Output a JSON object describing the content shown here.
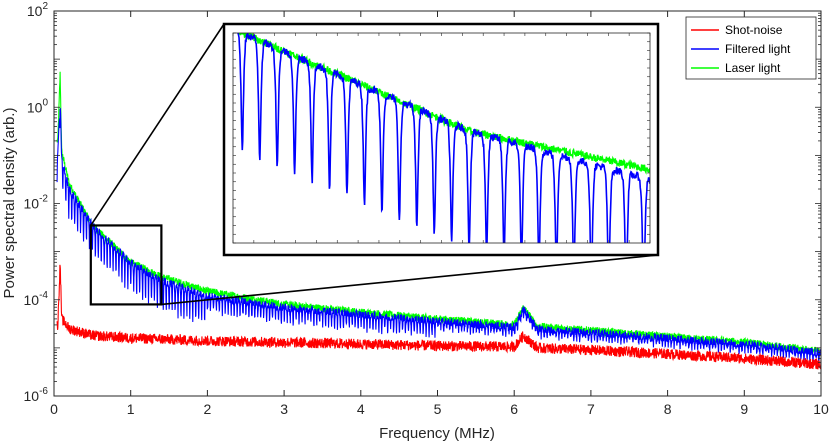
{
  "chart_data": {
    "type": "line",
    "xlabel": "Frequency (MHz)",
    "ylabel": "Power spectral density (arb.)",
    "xlim": [
      0,
      10
    ],
    "ylim": [
      1e-06,
      100
    ],
    "y_scale": "log",
    "grid": false,
    "legend_position": "top-right",
    "x_ticks": [
      "0",
      "1",
      "2",
      "3",
      "4",
      "5",
      "6",
      "7",
      "8",
      "9",
      "10"
    ],
    "y_ticks": [
      {
        "base": "10",
        "exp": "-6",
        "value": 1e-06
      },
      {
        "base": "10",
        "exp": "-4",
        "value": 0.0001
      },
      {
        "base": "10",
        "exp": "-2",
        "value": 0.01
      },
      {
        "base": "10",
        "exp": "0",
        "value": 1
      },
      {
        "base": "10",
        "exp": "2",
        "value": 100
      }
    ],
    "series": [
      {
        "name": "Shot-noise",
        "color": "#ff0000",
        "x": [
          0.05,
          0.08,
          0.1,
          0.2,
          0.5,
          1,
          2,
          3,
          4,
          5,
          6,
          6.12,
          6.3,
          7,
          8,
          9,
          10
        ],
        "y": [
          3e-05,
          0.0006,
          4e-05,
          2.5e-05,
          1.8e-05,
          1.6e-05,
          1.4e-05,
          1.3e-05,
          1.2e-05,
          1.1e-05,
          1.05e-05,
          1.8e-05,
          1e-05,
          9e-06,
          7.5e-06,
          6e-06,
          4.5e-06
        ]
      },
      {
        "name": "Filtered light",
        "color": "#0000ff",
        "x": [
          0.05,
          0.08,
          0.1,
          0.2,
          0.5,
          1,
          1.4,
          2,
          3,
          4,
          5,
          6,
          6.12,
          6.3,
          7,
          8,
          9,
          10
        ],
        "y": [
          0.1,
          2,
          0.08,
          0.02,
          0.0035,
          0.0006,
          0.00025,
          0.00012,
          7e-05,
          5e-05,
          3.6e-05,
          2.7e-05,
          6.5e-05,
          2.5e-05,
          2.1e-05,
          1.6e-05,
          1.2e-05,
          8e-06
        ]
      },
      {
        "name": "Laser light",
        "color": "#00ff00",
        "x": [
          0.05,
          0.08,
          0.1,
          0.2,
          0.5,
          1,
          1.4,
          2,
          3,
          4,
          5,
          6,
          6.12,
          6.3,
          7,
          8,
          9,
          10
        ],
        "y": [
          0.2,
          5,
          0.12,
          0.025,
          0.0035,
          0.0006,
          0.0003,
          0.00015,
          8e-05,
          5.5e-05,
          4e-05,
          3e-05,
          7e-05,
          2.8e-05,
          2.3e-05,
          1.7e-05,
          1.3e-05,
          8.5e-06
        ]
      }
    ],
    "zoom_region": {
      "x": [
        0.48,
        1.4
      ],
      "y": [
        8e-05,
        0.0035
      ]
    }
  }
}
